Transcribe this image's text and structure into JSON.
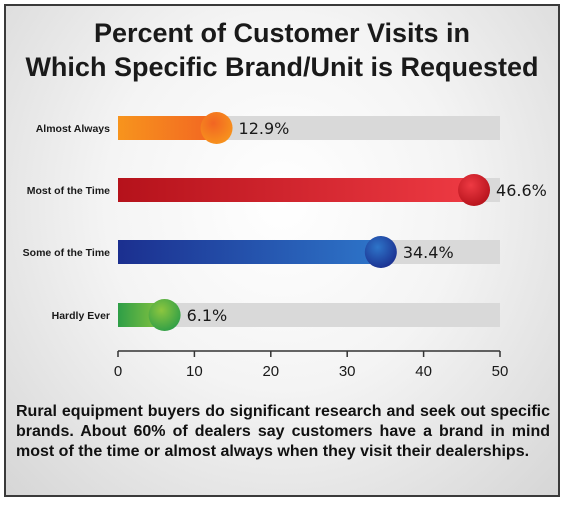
{
  "title_line1": "Percent of Customer Visits in",
  "title_line2": "Which Specific Brand/Unit is Requested",
  "footnote": "Rural equipment buyers do significant research and seek out specific brands. About 60% of dealers say customers have a brand in mind most of the time or almost always when they visit their dealerships.",
  "chart_data": {
    "type": "bar",
    "orientation": "horizontal",
    "title": "Percent of Customer Visits in Which Specific Brand/Unit is Requested",
    "categories": [
      "Almost Always",
      "Most of the Time",
      "Some of the Time",
      "Hardly Ever"
    ],
    "values": [
      12.9,
      46.6,
      34.4,
      6.1
    ],
    "value_labels": [
      "12.9%",
      "46.6%",
      "34.4%",
      "6.1%"
    ],
    "xlim": [
      0,
      50
    ],
    "xticks": [
      0,
      10,
      20,
      30,
      40,
      50
    ],
    "grid": false,
    "bar_colors": [
      [
        "#f7941d",
        "#f26522"
      ],
      [
        "#b5121b",
        "#ee3a43"
      ],
      [
        "#1b2f8f",
        "#2e75c9"
      ],
      [
        "#2e9e47",
        "#8dc63f"
      ]
    ],
    "track_color": "#d9d9d9"
  }
}
